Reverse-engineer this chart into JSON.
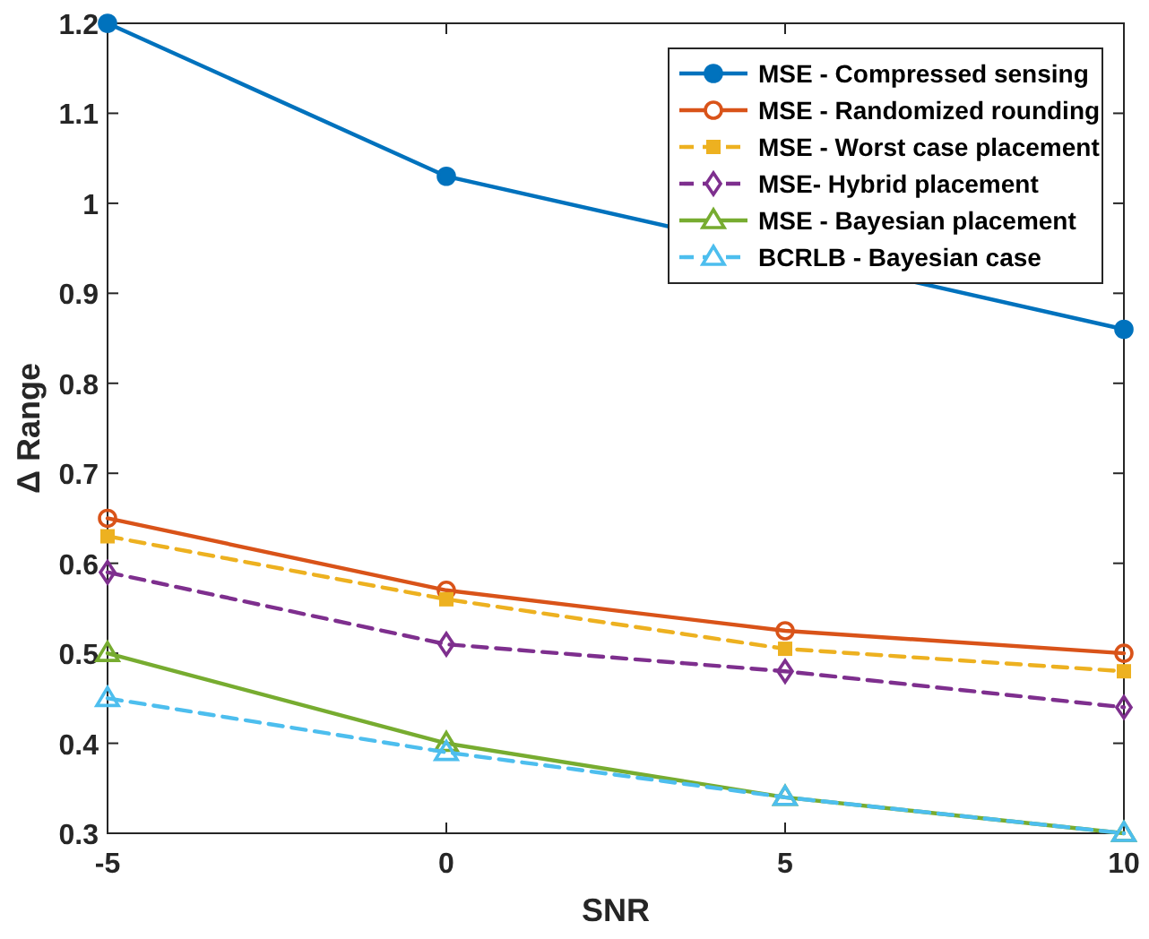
{
  "chart_data": {
    "type": "line",
    "xlabel": "SNR",
    "ylabel": "Δ Range",
    "x": [
      -5,
      0,
      5,
      10
    ],
    "xlim": [
      -5,
      10
    ],
    "xticks": [
      -5,
      0,
      5,
      10
    ],
    "ylim": [
      0.3,
      1.2
    ],
    "yticks": [
      0.3,
      0.4,
      0.5,
      0.6,
      0.7,
      0.8,
      0.9,
      1,
      1.1,
      1.2
    ],
    "legend": "top right",
    "grid": false,
    "series": [
      {
        "name": "MSE - Compressed sensing",
        "color": "#0072bd",
        "values": [
          1.2,
          1.03,
          null,
          0.86
        ],
        "marker": "circle",
        "line_style": "solid"
      },
      {
        "name": "MSE - Randomized rounding",
        "color": "#d95319",
        "values": [
          0.65,
          0.57,
          0.525,
          0.5
        ],
        "marker": "circle",
        "line_style": "solid"
      },
      {
        "name": "MSE - Worst case placement",
        "color": "#edb120",
        "values": [
          0.63,
          0.56,
          0.505,
          0.48
        ],
        "marker": "square",
        "line_style": "dashed"
      },
      {
        "name": "MSE- Hybrid placement",
        "color": "#7e2f8e",
        "values": [
          0.59,
          0.51,
          0.48,
          0.44
        ],
        "marker": "diamond",
        "line_style": "dashed"
      },
      {
        "name": "MSE - Bayesian placement",
        "color": "#77ac30",
        "values": [
          0.5,
          0.4,
          0.34,
          0.3
        ],
        "marker": "triangle",
        "line_style": "solid"
      },
      {
        "name": "BCRLB - Bayesian case",
        "color": "#4dbeee",
        "values": [
          0.45,
          0.39,
          0.34,
          0.3
        ],
        "marker": "triangle",
        "line_style": "dashed"
      }
    ]
  }
}
